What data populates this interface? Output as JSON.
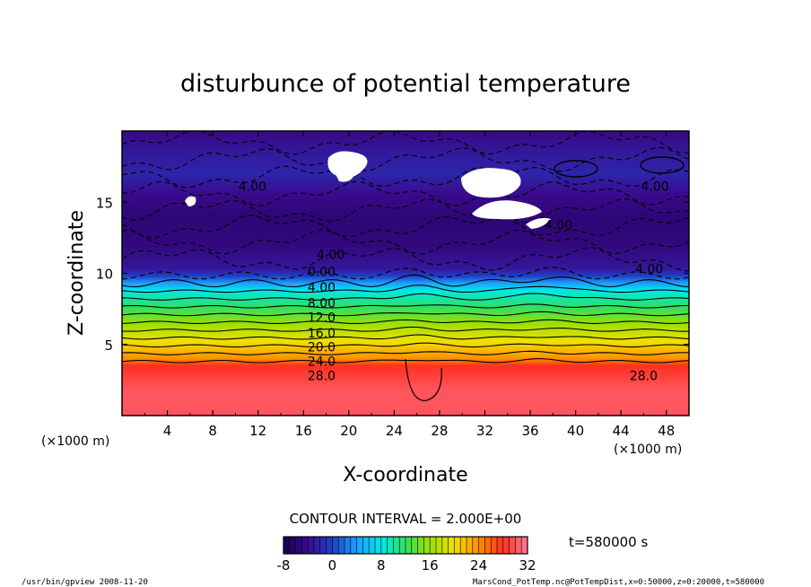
{
  "chart_data": {
    "type": "contour",
    "title": "disturbunce of potential temperature",
    "xlabel": "X-coordinate",
    "ylabel": "Z-coordinate",
    "x_unit": "(×1000 m)",
    "y_unit": "(×1000 m)",
    "xlim": [
      0,
      50
    ],
    "ylim": [
      0,
      20
    ],
    "x_ticks": [
      4,
      8,
      12,
      16,
      20,
      24,
      28,
      32,
      36,
      40,
      44,
      48
    ],
    "y_ticks": [
      5,
      10,
      15
    ],
    "contour_interval_text": "CONTOUR INTERVAL = 2.000E+00",
    "time_text": "t=580000 s",
    "colorbar": {
      "min": -8,
      "max": 32,
      "ticks": [
        -8,
        0,
        8,
        16,
        24,
        32
      ],
      "stops": [
        "#1a0050",
        "#3a0a8c",
        "#2040c8",
        "#1aa0ff",
        "#00e8e8",
        "#30e060",
        "#a0e000",
        "#f0e000",
        "#ff9000",
        "#ff3020",
        "#ff7a9a"
      ]
    },
    "bands": [
      {
        "z": 1.8,
        "value": 30.0
      },
      {
        "z": 3.5,
        "value": 28.0
      },
      {
        "z": 4.0,
        "value": 24.0
      },
      {
        "z": 4.6,
        "value": 22.0
      },
      {
        "z": 5.2,
        "value": 20.0
      },
      {
        "z": 5.8,
        "value": 18.0
      },
      {
        "z": 6.4,
        "value": 16.0
      },
      {
        "z": 7.0,
        "value": 14.0
      },
      {
        "z": 7.6,
        "value": 12.0
      },
      {
        "z": 8.2,
        "value": 10.0
      },
      {
        "z": 8.8,
        "value": 8.0
      },
      {
        "z": 9.3,
        "value": 4.0
      },
      {
        "z": 9.8,
        "value": 0.0
      },
      {
        "z": 10.3,
        "value": -3.0
      },
      {
        "z": 12.0,
        "value": -5.0
      },
      {
        "z": 14.0,
        "value": -5.5
      },
      {
        "z": 15.5,
        "value": -4.0
      },
      {
        "z": 17.0,
        "value": -2.0
      },
      {
        "z": 18.5,
        "value": -3.0
      },
      {
        "z": 20.0,
        "value": -4.5
      }
    ],
    "contour_labels": [
      {
        "x": 17.6,
        "z": 9.8,
        "text": "0.00"
      },
      {
        "x": 17.6,
        "z": 8.7,
        "text": "4.00"
      },
      {
        "x": 17.6,
        "z": 7.6,
        "text": "8.00"
      },
      {
        "x": 17.6,
        "z": 6.6,
        "text": "12.0"
      },
      {
        "x": 17.6,
        "z": 5.5,
        "text": "16.0"
      },
      {
        "x": 17.6,
        "z": 4.5,
        "text": "20.0"
      },
      {
        "x": 17.6,
        "z": 3.5,
        "text": "24.0"
      },
      {
        "x": 17.6,
        "z": 2.5,
        "text": "28.0"
      },
      {
        "x": 46.0,
        "z": 2.5,
        "text": "28.0"
      },
      {
        "x": 18.4,
        "z": 11.0,
        "text": "4.00"
      },
      {
        "x": 46.5,
        "z": 10.0,
        "text": "4.00"
      },
      {
        "x": 11.5,
        "z": 15.8,
        "text": "4.00"
      },
      {
        "x": 47.0,
        "z": 15.8,
        "text": "4.00"
      },
      {
        "x": 38.5,
        "z": 13.1,
        "text": "4.00"
      }
    ],
    "footer_left": "/usr/bin/gpview   2008-11-20",
    "footer_right": "MarsCond_PotTemp.nc@PotTempDist,x=0:50000,z=0:20000,t=580000"
  }
}
